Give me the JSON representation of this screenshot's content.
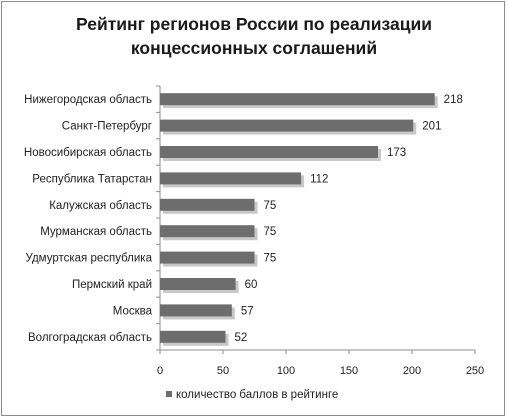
{
  "chart_data": {
    "type": "bar",
    "orientation": "horizontal",
    "title_lines": [
      "Рейтинг регионов России по реализации",
      "концессионных соглашений"
    ],
    "categories": [
      "Нижегородская область",
      "Санкт-Петербург",
      "Новосибирская область",
      "Республика Татарстан",
      "Калужская область",
      "Мурманская область",
      "Удмуртская республика",
      "Пермский край",
      "Москва",
      "Волгоградская область"
    ],
    "series": [
      {
        "name": "количество баллов в рейтинге",
        "values": [
          218,
          201,
          173,
          112,
          75,
          75,
          75,
          60,
          57,
          52
        ]
      }
    ],
    "xlim": [
      0,
      250
    ],
    "x_ticks": [
      "0",
      "50",
      "100",
      "150",
      "200",
      "250"
    ],
    "grid": false,
    "legend_position": "bottom",
    "bar_color": "#6d6d6d"
  }
}
